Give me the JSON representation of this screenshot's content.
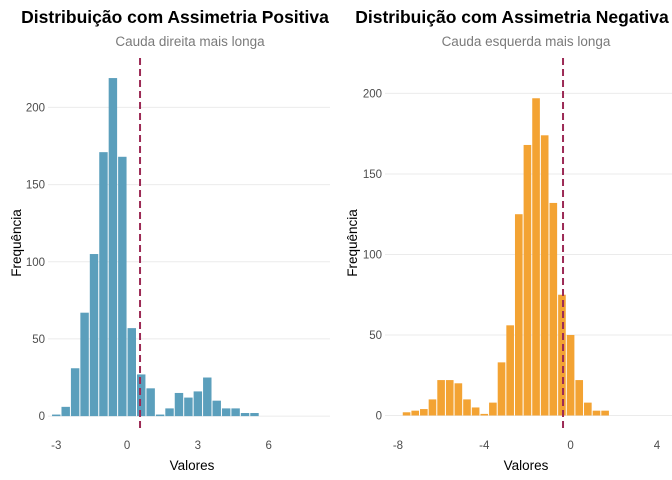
{
  "chart_data": [
    {
      "type": "bar",
      "title": "Distribuição com Assimetria Positiva",
      "subtitle": "Cauda direita mais longa",
      "xlabel": "Valores",
      "ylabel": "Frequência",
      "fill_color": "#5b9fbc",
      "line_color": "#9c2a55",
      "xlim": [
        -3.35,
        8.6
      ],
      "ylim": [
        -9,
        232
      ],
      "x_ticks": [
        -3,
        0,
        3,
        6
      ],
      "y_ticks": [
        0,
        50,
        100,
        150,
        200
      ],
      "bin_width": 0.4,
      "bins_start": -3.2,
      "counts": [
        1,
        6,
        31,
        67,
        105,
        171,
        219,
        168,
        57,
        27,
        18,
        1,
        5,
        15,
        12,
        16,
        25,
        10,
        5,
        5,
        2,
        2
      ],
      "reference_line_x": 0.55,
      "grid": true,
      "legend": "none"
    },
    {
      "type": "bar",
      "title": "Distribuição com Assimetria Negativa",
      "subtitle": "Cauda esquerda mais longa",
      "xlabel": "Valores",
      "ylabel": "Frequência",
      "fill_color": "#f3a333",
      "line_color": "#9c2a55",
      "xlim": [
        -8.6,
        4.7
      ],
      "ylim": [
        -9,
        222
      ],
      "x_ticks": [
        -8,
        -4,
        0,
        4
      ],
      "y_ticks": [
        0,
        50,
        100,
        150,
        200
      ],
      "bin_width": 0.4,
      "bins_start": -7.8,
      "counts": [
        2,
        3,
        4,
        10,
        22,
        22,
        20,
        10,
        5,
        1,
        8,
        33,
        56,
        125,
        168,
        197,
        174,
        132,
        75,
        50,
        22,
        8,
        3,
        3
      ],
      "reference_line_x": -0.35,
      "grid": true,
      "legend": "none"
    }
  ]
}
